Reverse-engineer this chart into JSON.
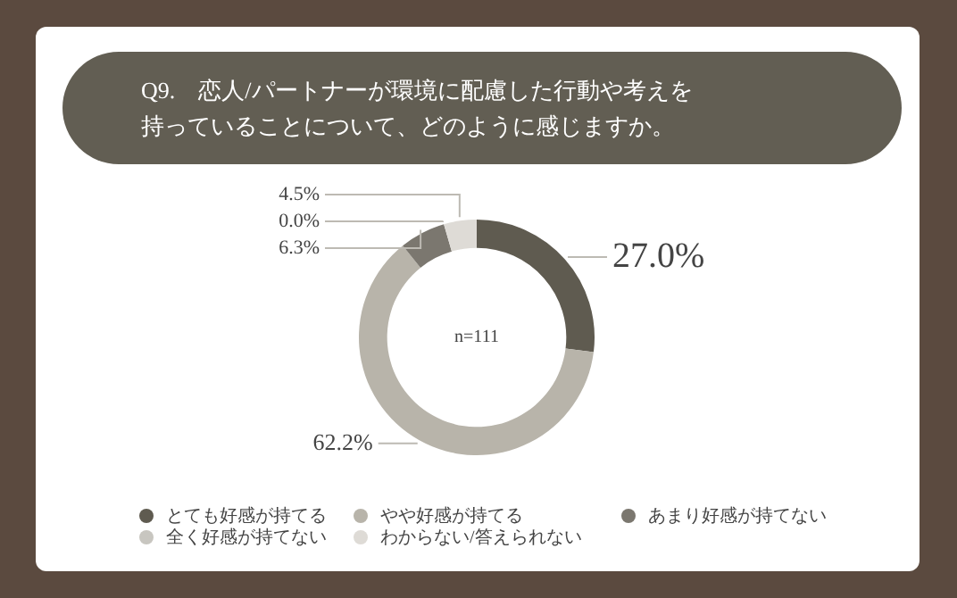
{
  "chart_data": {
    "type": "donut",
    "title": "Q9.　恋人/パートナーが環境に配慮した行動や考えを持っていることについて、どのように感じますか。",
    "categories": [
      "とても好感が持てる",
      "やや好感が持てる",
      "あまり好感が持てない",
      "全く好感が持てない",
      "わからない/答えられない"
    ],
    "values": [
      27.0,
      62.2,
      6.3,
      0.0,
      4.5
    ],
    "colors": [
      "#5f5b50",
      "#b8b4aa",
      "#7b776f",
      "#c8c6c0",
      "#dedbd6"
    ],
    "value_labels": [
      "27.0%",
      "62.2%",
      "6.3%",
      "0.0%",
      "4.5%"
    ],
    "annotations": [
      "n=111"
    ],
    "legend": "bottom"
  }
}
